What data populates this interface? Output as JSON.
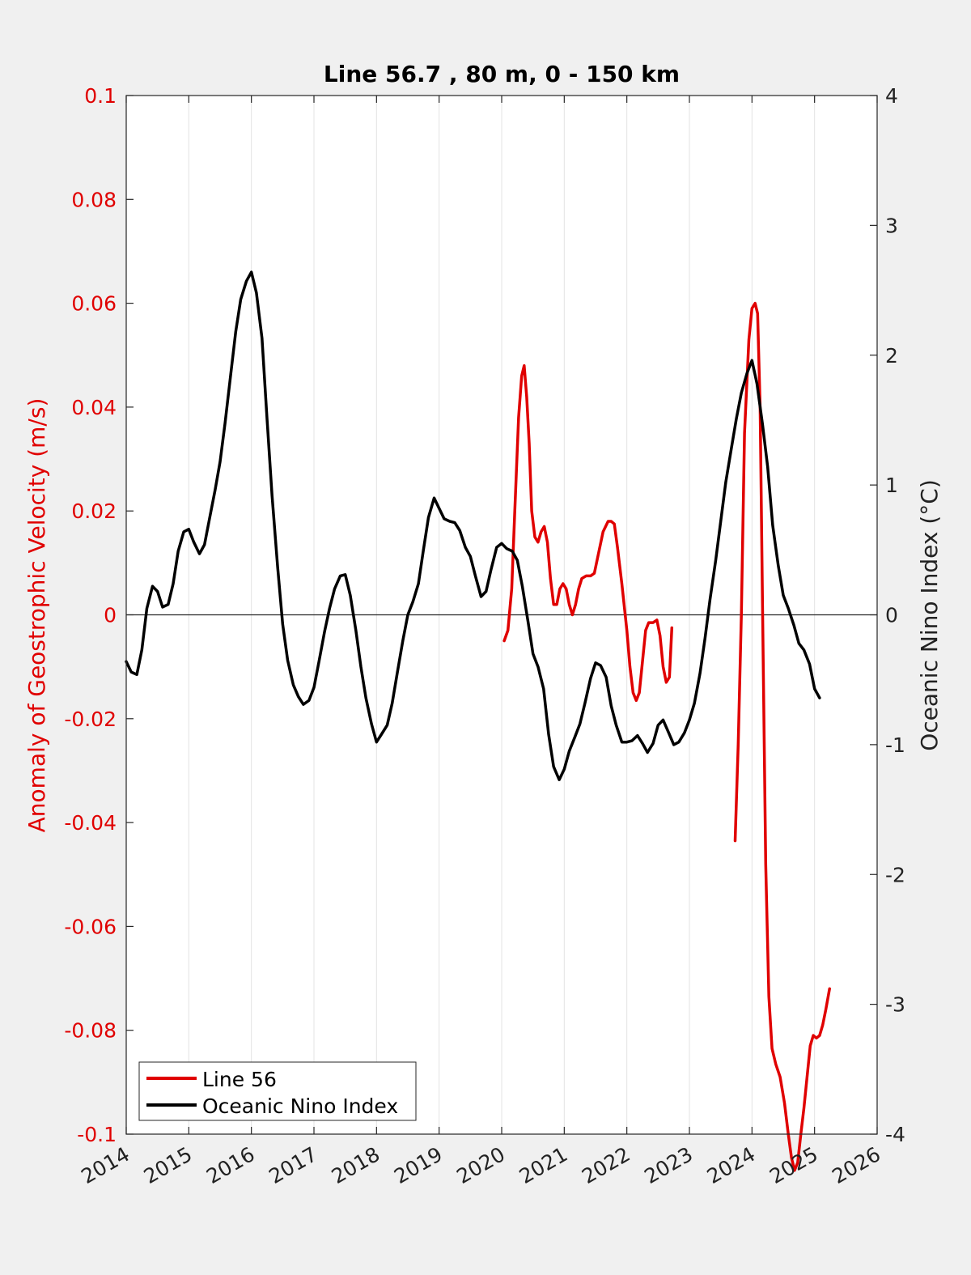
{
  "chart_data": {
    "type": "line",
    "title": "Line 56.7 , 80 m, 0 - 150 km",
    "xlabel": "",
    "ylabel_left": "Anomaly of Geostrophic Velocity (m/s)",
    "ylabel_right": "Oceanic Nino Index (°C)",
    "xlim": [
      2014,
      2026
    ],
    "ylim_left": [
      -0.1,
      0.1
    ],
    "ylim_right": [
      -4,
      4
    ],
    "x_ticks": [
      "2014",
      "2015",
      "2016",
      "2017",
      "2018",
      "2019",
      "2020",
      "2021",
      "2022",
      "2023",
      "2024",
      "2025",
      "2026"
    ],
    "y_left_ticks": [
      "0.1",
      "0.08",
      "0.06",
      "0.04",
      "0.02",
      "0",
      "-0.02",
      "-0.04",
      "-0.06",
      "-0.08",
      "-0.1"
    ],
    "y_right_ticks": [
      "4",
      "3",
      "2",
      "1",
      "0",
      "-1",
      "-2",
      "-3",
      "-4"
    ],
    "grid": "vertical",
    "legend_position": "bottom-left",
    "colors": {
      "line56": "#e00000",
      "oni": "#000000",
      "left_axis": "#e00000",
      "right_axis": "#222222"
    },
    "series": [
      {
        "name": "Line 56",
        "axis": "left",
        "color": "#e00000",
        "segments": [
          [
            [
              2020.04,
              -0.005
            ],
            [
              2020.1,
              -0.003
            ],
            [
              2020.16,
              0.005
            ],
            [
              2020.21,
              0.02
            ],
            [
              2020.27,
              0.038
            ],
            [
              2020.32,
              0.046
            ],
            [
              2020.36,
              0.048
            ],
            [
              2020.4,
              0.042
            ],
            [
              2020.44,
              0.033
            ],
            [
              2020.48,
              0.02
            ],
            [
              2020.53,
              0.015
            ],
            [
              2020.58,
              0.014
            ],
            [
              2020.63,
              0.016
            ],
            [
              2020.68,
              0.017
            ],
            [
              2020.73,
              0.014
            ],
            [
              2020.78,
              0.007
            ],
            [
              2020.83,
              0.002
            ],
            [
              2020.88,
              0.002
            ],
            [
              2020.93,
              0.005
            ],
            [
              2020.98,
              0.006
            ],
            [
              2021.03,
              0.005
            ],
            [
              2021.08,
              0.002
            ],
            [
              2021.13,
              0.0
            ],
            [
              2021.18,
              0.002
            ],
            [
              2021.23,
              0.005
            ],
            [
              2021.28,
              0.007
            ],
            [
              2021.35,
              0.0075
            ],
            [
              2021.42,
              0.0075
            ],
            [
              2021.48,
              0.008
            ],
            [
              2021.55,
              0.012
            ],
            [
              2021.62,
              0.016
            ],
            [
              2021.7,
              0.018
            ],
            [
              2021.75,
              0.018
            ],
            [
              2021.8,
              0.0175
            ],
            [
              2021.85,
              0.013
            ],
            [
              2021.92,
              0.006
            ],
            [
              2022.0,
              -0.003
            ],
            [
              2022.05,
              -0.01
            ],
            [
              2022.1,
              -0.015
            ],
            [
              2022.15,
              -0.0165
            ],
            [
              2022.2,
              -0.015
            ],
            [
              2022.25,
              -0.009
            ],
            [
              2022.3,
              -0.003
            ],
            [
              2022.35,
              -0.0015
            ],
            [
              2022.42,
              -0.0015
            ],
            [
              2022.48,
              -0.001
            ],
            [
              2022.53,
              -0.004
            ],
            [
              2022.58,
              -0.01
            ],
            [
              2022.63,
              -0.013
            ],
            [
              2022.68,
              -0.012
            ],
            [
              2022.72,
              -0.0025
            ]
          ],
          [
            [
              2023.73,
              -0.0435
            ],
            [
              2023.78,
              -0.025
            ],
            [
              2023.83,
              0.0
            ],
            [
              2023.88,
              0.035
            ],
            [
              2023.95,
              0.053
            ],
            [
              2024.0,
              0.059
            ],
            [
              2024.05,
              0.06
            ],
            [
              2024.09,
              0.058
            ],
            [
              2024.13,
              0.04
            ],
            [
              2024.17,
              0.0
            ],
            [
              2024.22,
              -0.048
            ],
            [
              2024.27,
              -0.0735
            ],
            [
              2024.32,
              -0.0835
            ],
            [
              2024.38,
              -0.0865
            ],
            [
              2024.45,
              -0.089
            ],
            [
              2024.52,
              -0.094
            ],
            [
              2024.58,
              -0.1
            ],
            [
              2024.63,
              -0.1045
            ],
            [
              2024.68,
              -0.107
            ],
            [
              2024.73,
              -0.1055
            ],
            [
              2024.78,
              -0.1
            ],
            [
              2024.83,
              -0.095
            ],
            [
              2024.88,
              -0.089
            ],
            [
              2024.93,
              -0.083
            ],
            [
              2024.98,
              -0.081
            ],
            [
              2025.03,
              -0.0815
            ],
            [
              2025.08,
              -0.081
            ],
            [
              2025.13,
              -0.079
            ],
            [
              2025.18,
              -0.076
            ],
            [
              2025.24,
              -0.072
            ]
          ]
        ]
      },
      {
        "name": "Oceanic Nino Index",
        "axis": "right",
        "color": "#000000",
        "points": [
          [
            2014.0,
            -0.36
          ],
          [
            2014.08,
            -0.44
          ],
          [
            2014.17,
            -0.46
          ],
          [
            2014.25,
            -0.27
          ],
          [
            2014.33,
            0.05
          ],
          [
            2014.42,
            0.22
          ],
          [
            2014.5,
            0.18
          ],
          [
            2014.58,
            0.06
          ],
          [
            2014.67,
            0.08
          ],
          [
            2014.75,
            0.24
          ],
          [
            2014.83,
            0.49
          ],
          [
            2014.92,
            0.64
          ],
          [
            2015.0,
            0.66
          ],
          [
            2015.08,
            0.56
          ],
          [
            2015.17,
            0.47
          ],
          [
            2015.25,
            0.54
          ],
          [
            2015.33,
            0.74
          ],
          [
            2015.42,
            0.96
          ],
          [
            2015.5,
            1.18
          ],
          [
            2015.58,
            1.48
          ],
          [
            2015.67,
            1.85
          ],
          [
            2015.75,
            2.18
          ],
          [
            2015.83,
            2.43
          ],
          [
            2015.92,
            2.57
          ],
          [
            2016.0,
            2.64
          ],
          [
            2016.08,
            2.48
          ],
          [
            2016.17,
            2.13
          ],
          [
            2016.25,
            1.51
          ],
          [
            2016.33,
            0.92
          ],
          [
            2016.42,
            0.37
          ],
          [
            2016.5,
            -0.07
          ],
          [
            2016.58,
            -0.35
          ],
          [
            2016.67,
            -0.54
          ],
          [
            2016.75,
            -0.63
          ],
          [
            2016.83,
            -0.69
          ],
          [
            2016.92,
            -0.66
          ],
          [
            2017.0,
            -0.56
          ],
          [
            2017.08,
            -0.36
          ],
          [
            2017.17,
            -0.13
          ],
          [
            2017.25,
            0.05
          ],
          [
            2017.33,
            0.2
          ],
          [
            2017.42,
            0.3
          ],
          [
            2017.5,
            0.31
          ],
          [
            2017.58,
            0.15
          ],
          [
            2017.67,
            -0.12
          ],
          [
            2017.75,
            -0.4
          ],
          [
            2017.83,
            -0.64
          ],
          [
            2017.92,
            -0.84
          ],
          [
            2018.0,
            -0.98
          ],
          [
            2018.08,
            -0.92
          ],
          [
            2018.17,
            -0.85
          ],
          [
            2018.25,
            -0.68
          ],
          [
            2018.33,
            -0.45
          ],
          [
            2018.42,
            -0.2
          ],
          [
            2018.5,
            0.0
          ],
          [
            2018.58,
            0.1
          ],
          [
            2018.67,
            0.24
          ],
          [
            2018.75,
            0.5
          ],
          [
            2018.83,
            0.75
          ],
          [
            2018.92,
            0.9
          ],
          [
            2019.0,
            0.82
          ],
          [
            2019.08,
            0.74
          ],
          [
            2019.17,
            0.72
          ],
          [
            2019.25,
            0.71
          ],
          [
            2019.33,
            0.65
          ],
          [
            2019.42,
            0.52
          ],
          [
            2019.5,
            0.45
          ],
          [
            2019.58,
            0.3
          ],
          [
            2019.67,
            0.14
          ],
          [
            2019.75,
            0.18
          ],
          [
            2019.83,
            0.35
          ],
          [
            2019.92,
            0.52
          ],
          [
            2020.0,
            0.55
          ],
          [
            2020.08,
            0.51
          ],
          [
            2020.17,
            0.49
          ],
          [
            2020.25,
            0.42
          ],
          [
            2020.33,
            0.22
          ],
          [
            2020.42,
            -0.05
          ],
          [
            2020.5,
            -0.3
          ],
          [
            2020.58,
            -0.4
          ],
          [
            2020.67,
            -0.57
          ],
          [
            2020.75,
            -0.92
          ],
          [
            2020.83,
            -1.17
          ],
          [
            2020.92,
            -1.27
          ],
          [
            2021.0,
            -1.19
          ],
          [
            2021.08,
            -1.05
          ],
          [
            2021.17,
            -0.94
          ],
          [
            2021.25,
            -0.84
          ],
          [
            2021.33,
            -0.68
          ],
          [
            2021.42,
            -0.49
          ],
          [
            2021.5,
            -0.37
          ],
          [
            2021.58,
            -0.39
          ],
          [
            2021.67,
            -0.48
          ],
          [
            2021.75,
            -0.7
          ],
          [
            2021.83,
            -0.85
          ],
          [
            2021.92,
            -0.98
          ],
          [
            2022.0,
            -0.98
          ],
          [
            2022.08,
            -0.97
          ],
          [
            2022.17,
            -0.93
          ],
          [
            2022.25,
            -0.99
          ],
          [
            2022.33,
            -1.06
          ],
          [
            2022.42,
            -0.99
          ],
          [
            2022.5,
            -0.85
          ],
          [
            2022.58,
            -0.81
          ],
          [
            2022.67,
            -0.91
          ],
          [
            2022.75,
            -1.0
          ],
          [
            2022.83,
            -0.98
          ],
          [
            2022.92,
            -0.91
          ],
          [
            2023.0,
            -0.81
          ],
          [
            2023.08,
            -0.68
          ],
          [
            2023.17,
            -0.45
          ],
          [
            2023.25,
            -0.18
          ],
          [
            2023.33,
            0.12
          ],
          [
            2023.42,
            0.42
          ],
          [
            2023.5,
            0.72
          ],
          [
            2023.58,
            1.02
          ],
          [
            2023.67,
            1.28
          ],
          [
            2023.75,
            1.51
          ],
          [
            2023.83,
            1.71
          ],
          [
            2023.92,
            1.86
          ],
          [
            2024.0,
            1.96
          ],
          [
            2024.08,
            1.78
          ],
          [
            2024.17,
            1.46
          ],
          [
            2024.25,
            1.14
          ],
          [
            2024.33,
            0.69
          ],
          [
            2024.42,
            0.38
          ],
          [
            2024.5,
            0.15
          ],
          [
            2024.58,
            0.05
          ],
          [
            2024.67,
            -0.08
          ],
          [
            2024.75,
            -0.22
          ],
          [
            2024.83,
            -0.27
          ],
          [
            2024.92,
            -0.38
          ],
          [
            2025.0,
            -0.57
          ],
          [
            2025.08,
            -0.64
          ]
        ]
      }
    ]
  }
}
